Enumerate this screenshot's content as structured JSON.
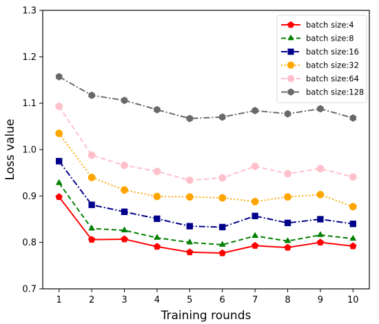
{
  "chart_data": {
    "type": "line",
    "title": "",
    "xlabel": "Training rounds",
    "ylabel": "Loss value",
    "x": [
      1,
      2,
      3,
      4,
      5,
      6,
      7,
      8,
      9,
      10
    ],
    "xlim": [
      0.5,
      10.5
    ],
    "ylim": [
      0.7,
      1.3
    ],
    "x_ticks": [
      "1",
      "2",
      "3",
      "4",
      "5",
      "6",
      "7",
      "8",
      "9",
      "10"
    ],
    "y_ticks": [
      "0.7",
      "0.8",
      "0.9",
      "1.0",
      "1.1",
      "1.2",
      "1.3"
    ],
    "grid": false,
    "legend_position": "top-right",
    "series": [
      {
        "name": "batch size:4",
        "color": "#ff0000",
        "marker": "pentagon",
        "linestyle": "solid",
        "values": [
          0.898,
          0.806,
          0.807,
          0.791,
          0.779,
          0.777,
          0.793,
          0.789,
          0.8,
          0.792
        ]
      },
      {
        "name": "batch size:8",
        "color": "#008000",
        "marker": "triangle",
        "linestyle": "dashed",
        "values": [
          0.928,
          0.83,
          0.826,
          0.81,
          0.8,
          0.795,
          0.814,
          0.803,
          0.816,
          0.808
        ]
      },
      {
        "name": "batch size:16",
        "color": "#00008b",
        "marker": "square",
        "linestyle": "dashdot",
        "values": [
          0.975,
          0.881,
          0.866,
          0.851,
          0.835,
          0.833,
          0.857,
          0.842,
          0.85,
          0.84
        ]
      },
      {
        "name": "batch size:32",
        "color": "#ffa500",
        "marker": "circle",
        "linestyle": "dotted",
        "values": [
          1.035,
          0.94,
          0.913,
          0.899,
          0.898,
          0.896,
          0.888,
          0.898,
          0.903,
          0.877
        ]
      },
      {
        "name": "batch size:64",
        "color": "#ffc0cb",
        "marker": "circle",
        "linestyle": "dashed",
        "values": [
          1.093,
          0.988,
          0.966,
          0.953,
          0.934,
          0.939,
          0.964,
          0.948,
          0.959,
          0.941
        ]
      },
      {
        "name": "batch size:128",
        "color": "#696969",
        "marker": "hexagon",
        "linestyle": "dashdot",
        "values": [
          1.157,
          1.117,
          1.106,
          1.086,
          1.067,
          1.07,
          1.084,
          1.077,
          1.088,
          1.068
        ]
      }
    ]
  }
}
